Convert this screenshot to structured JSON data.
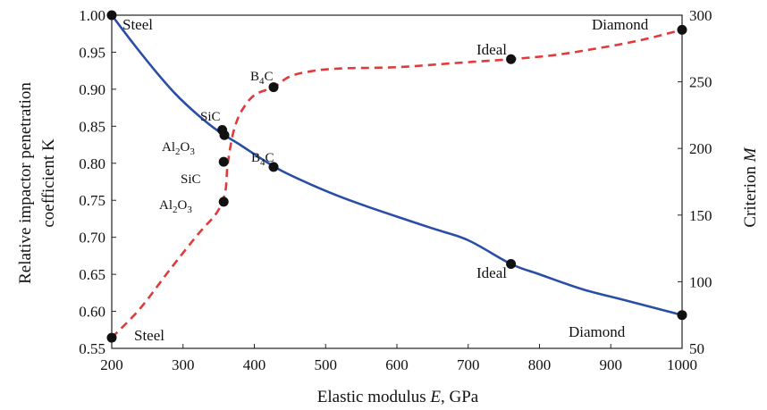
{
  "chart_data": {
    "type": "line",
    "xlabel_main": "Elastic modulus ",
    "xlabel_var": "E",
    "xlabel_unit": ", GPa",
    "ylabel_left_line1": "Relative impactor penetration",
    "ylabel_left_line2": "coefficient K",
    "ylabel_right_main": "Criterion ",
    "ylabel_right_var": "M",
    "xlim": [
      200,
      1000
    ],
    "ylim_left": [
      0.55,
      1.0
    ],
    "ylim_right": [
      50,
      300
    ],
    "x_ticks": [
      "200",
      "300",
      "400",
      "500",
      "600",
      "700",
      "800",
      "900",
      "1000"
    ],
    "y_left_ticks": [
      "0.55",
      "0.60",
      "0.65",
      "0.70",
      "0.75",
      "0.80",
      "0.85",
      "0.90",
      "0.95",
      "1.00"
    ],
    "y_right_ticks": [
      "50",
      "100",
      "150",
      "200",
      "250",
      "300"
    ],
    "series": [
      {
        "axis": "left",
        "color": "#2a4ea6",
        "style": "solid",
        "curve": [
          [
            200,
            1.0
          ],
          [
            230,
            0.962
          ],
          [
            260,
            0.926
          ],
          [
            290,
            0.893
          ],
          [
            320,
            0.866
          ],
          [
            350,
            0.843
          ],
          [
            380,
            0.825
          ],
          [
            410,
            0.806
          ],
          [
            440,
            0.789
          ],
          [
            480,
            0.771
          ],
          [
            520,
            0.755
          ],
          [
            560,
            0.741
          ],
          [
            600,
            0.728
          ],
          [
            650,
            0.712
          ],
          [
            700,
            0.696
          ],
          [
            760,
            0.664
          ],
          [
            800,
            0.65
          ],
          [
            860,
            0.63
          ],
          [
            920,
            0.615
          ],
          [
            1000,
            0.595
          ]
        ],
        "points": [
          {
            "x": 200,
            "y": 1.0,
            "label": "Steel"
          },
          {
            "x": 355,
            "y": 0.845,
            "label": "SiC"
          },
          {
            "x": 358,
            "y": 0.838,
            "label": "Al2O3"
          },
          {
            "x": 427,
            "y": 0.795,
            "label": "B4C"
          },
          {
            "x": 760,
            "y": 0.664,
            "label": "Ideal"
          },
          {
            "x": 1000,
            "y": 0.595,
            "label": "Diamond"
          }
        ]
      },
      {
        "axis": "right",
        "color": "#e03a3a",
        "style": "dashed",
        "curve": [
          [
            200,
            58
          ],
          [
            240,
            80
          ],
          [
            280,
            108
          ],
          [
            320,
            135
          ],
          [
            345,
            150
          ],
          [
            355,
            160
          ],
          [
            360,
            170
          ],
          [
            362,
            185
          ],
          [
            366,
            200
          ],
          [
            372,
            215
          ],
          [
            382,
            228
          ],
          [
            400,
            240
          ],
          [
            427,
            246
          ],
          [
            450,
            254
          ],
          [
            480,
            258
          ],
          [
            520,
            260
          ],
          [
            600,
            261
          ],
          [
            680,
            264
          ],
          [
            760,
            267
          ],
          [
            820,
            270
          ],
          [
            880,
            275
          ],
          [
            940,
            281
          ],
          [
            1000,
            289
          ]
        ],
        "points": [
          {
            "x": 200,
            "y": 58,
            "label": "Steel"
          },
          {
            "x": 357,
            "y": 160,
            "label": "Al2O3"
          },
          {
            "x": 357,
            "y": 190,
            "label": "SiC"
          },
          {
            "x": 427,
            "y": 246,
            "label": "B4C"
          },
          {
            "x": 760,
            "y": 267,
            "label": "Ideal"
          },
          {
            "x": 1000,
            "y": 289,
            "label": "Diamond"
          }
        ]
      }
    ]
  },
  "labels": {
    "steel_top": "Steel",
    "steel_bottom": "Steel",
    "diamond_top": "Diamond",
    "diamond_bottom": "Diamond",
    "ideal_top": "Ideal",
    "ideal_bottom": "Ideal",
    "b4c_top_main": "B",
    "b4c_top_sub": "4",
    "b4c_top_tail": "C",
    "b4c_mid_main": "B",
    "b4c_mid_sub": "4",
    "b4c_mid_tail": "C",
    "sic_upper": "SiC",
    "sic_lower": "SiC",
    "al2o3_upper_a": "Al",
    "al2o3_upper_b": "2",
    "al2o3_upper_c": "O",
    "al2o3_upper_d": "3",
    "al2o3_lower_a": "Al",
    "al2o3_lower_b": "2",
    "al2o3_lower_c": "O",
    "al2o3_lower_d": "3"
  }
}
